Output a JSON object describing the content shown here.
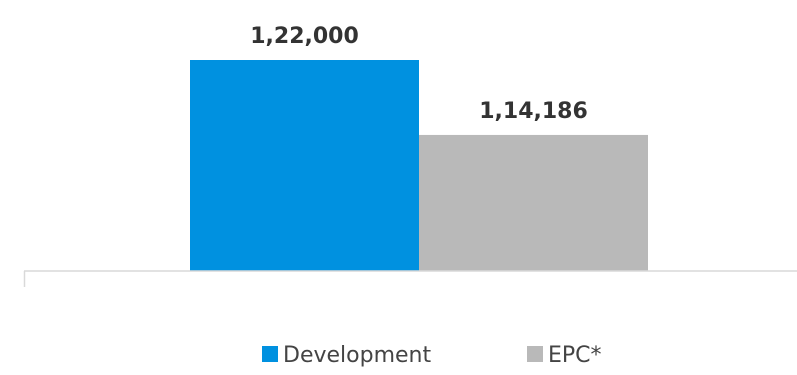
{
  "chart_data": {
    "type": "bar",
    "categories": [
      ""
    ],
    "series": [
      {
        "name": "Development",
        "values": [
          122000
        ],
        "label": "1,22,000",
        "color": "#0091e0"
      },
      {
        "name": "EPC*",
        "values": [
          114186
        ],
        "label": "1,14,186",
        "color": "#b9b9b9"
      }
    ],
    "title": "",
    "xlabel": "",
    "ylabel": "",
    "ylim": [
      100000,
      125000
    ],
    "grid": false,
    "legend": "bottom",
    "axis_color": "#d9d9d9"
  }
}
